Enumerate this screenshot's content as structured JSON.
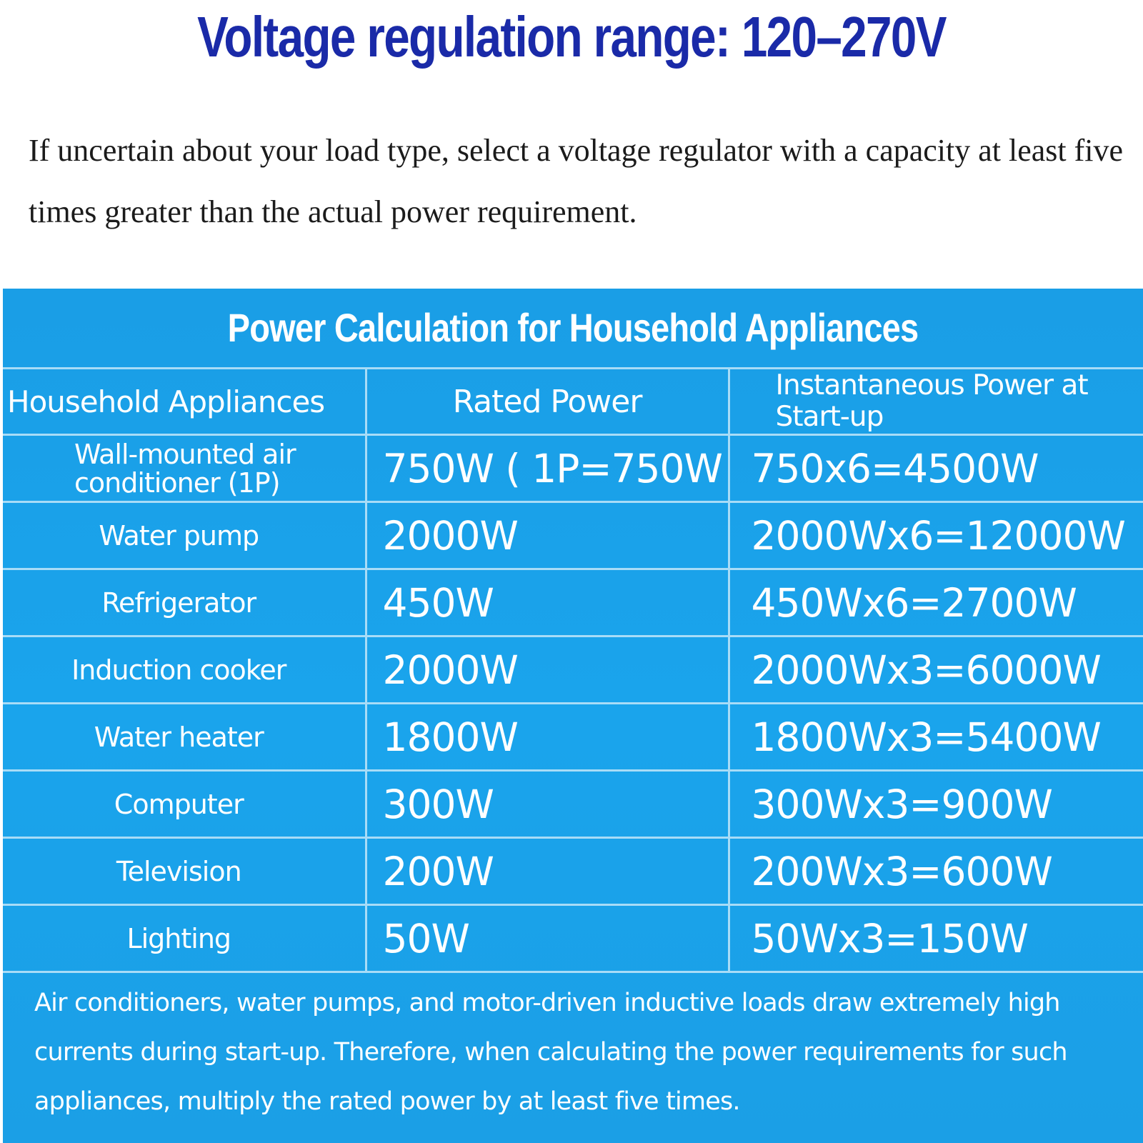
{
  "headline": "Voltage regulation range: 120–270V",
  "intro": "If uncertain about your load type, select a voltage regulator with a capacity at least five times greater than the actual power requirement.",
  "panel": {
    "title": "Power Calculation for Household Appliances",
    "columns": [
      "Household Appliances",
      "Rated Power",
      "Instantaneous Power at Start-up"
    ],
    "rows": [
      {
        "appliance": "Wall-mounted air conditioner (1P)",
        "rated": "750W ( 1P=750W",
        "startup": "750x6=4500W"
      },
      {
        "appliance": "Water pump",
        "rated": "2000W",
        "startup": "2000Wx6=12000W"
      },
      {
        "appliance": "Refrigerator",
        "rated": "450W",
        "startup": "450Wx6=2700W"
      },
      {
        "appliance": "Induction cooker",
        "rated": "2000W",
        "startup": "2000Wx3=6000W"
      },
      {
        "appliance": "Water heater",
        "rated": "1800W",
        "startup": "1800Wx3=5400W"
      },
      {
        "appliance": "Computer",
        "rated": "300W",
        "startup": "300Wx3=900W"
      },
      {
        "appliance": "Television",
        "rated": "200W",
        "startup": "200Wx3=600W"
      },
      {
        "appliance": "Lighting",
        "rated": "50W",
        "startup": "50Wx3=150W"
      }
    ],
    "footnote": "Air conditioners, water pumps, and motor-driven inductive loads draw extremely high currents during start-up. Therefore, when calculating the power requirements for such appliances, multiply the rated power by at least five times."
  },
  "colors": {
    "headline": "#1a2aa8",
    "panel_background": "#1aa4ec",
    "grid_lines": "#a8dcf7",
    "text_on_panel": "#ffffff"
  }
}
